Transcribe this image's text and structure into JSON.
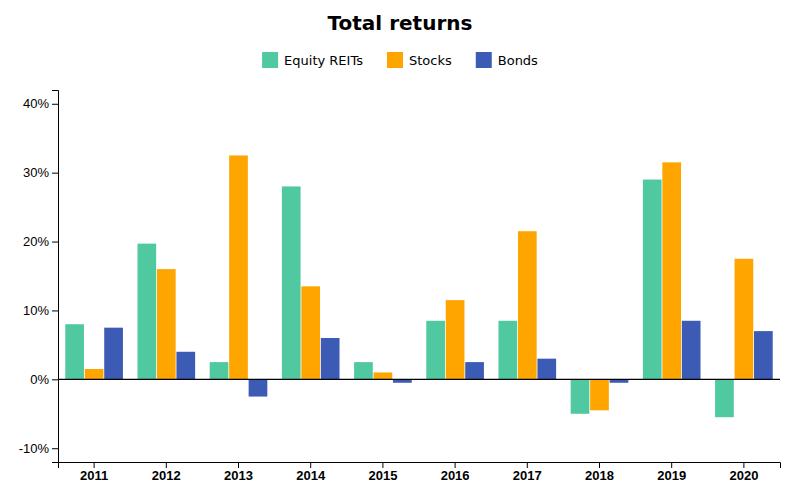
{
  "chart_data": {
    "type": "bar",
    "title": "Total returns",
    "categories": [
      "2011",
      "2012",
      "2013",
      "2014",
      "2015",
      "2016",
      "2017",
      "2018",
      "2019",
      "2020"
    ],
    "series": [
      {
        "name": "Equity REITs",
        "color": "#50C8A0",
        "values": [
          8.0,
          19.7,
          2.5,
          28.0,
          2.5,
          8.5,
          8.5,
          -5.0,
          29.0,
          -5.5
        ]
      },
      {
        "name": "Stocks",
        "color": "#FFA500",
        "values": [
          1.5,
          16.0,
          32.5,
          13.5,
          1.0,
          11.5,
          21.5,
          -4.5,
          31.5,
          17.5
        ]
      },
      {
        "name": "Bonds",
        "color": "#3B5BB5",
        "values": [
          7.5,
          4.0,
          -2.5,
          6.0,
          -0.5,
          2.5,
          3.0,
          -0.5,
          8.5,
          7.0
        ]
      }
    ],
    "ylim": [
      -12,
      42
    ],
    "yticks": [
      {
        "value": -10,
        "label": "-10%"
      },
      {
        "value": 0,
        "label": "0%"
      },
      {
        "value": 10,
        "label": "10%"
      },
      {
        "value": 20,
        "label": "20%"
      },
      {
        "value": 30,
        "label": "30%"
      },
      {
        "value": 40,
        "label": "40%"
      }
    ],
    "grid": false,
    "legend": "top"
  }
}
